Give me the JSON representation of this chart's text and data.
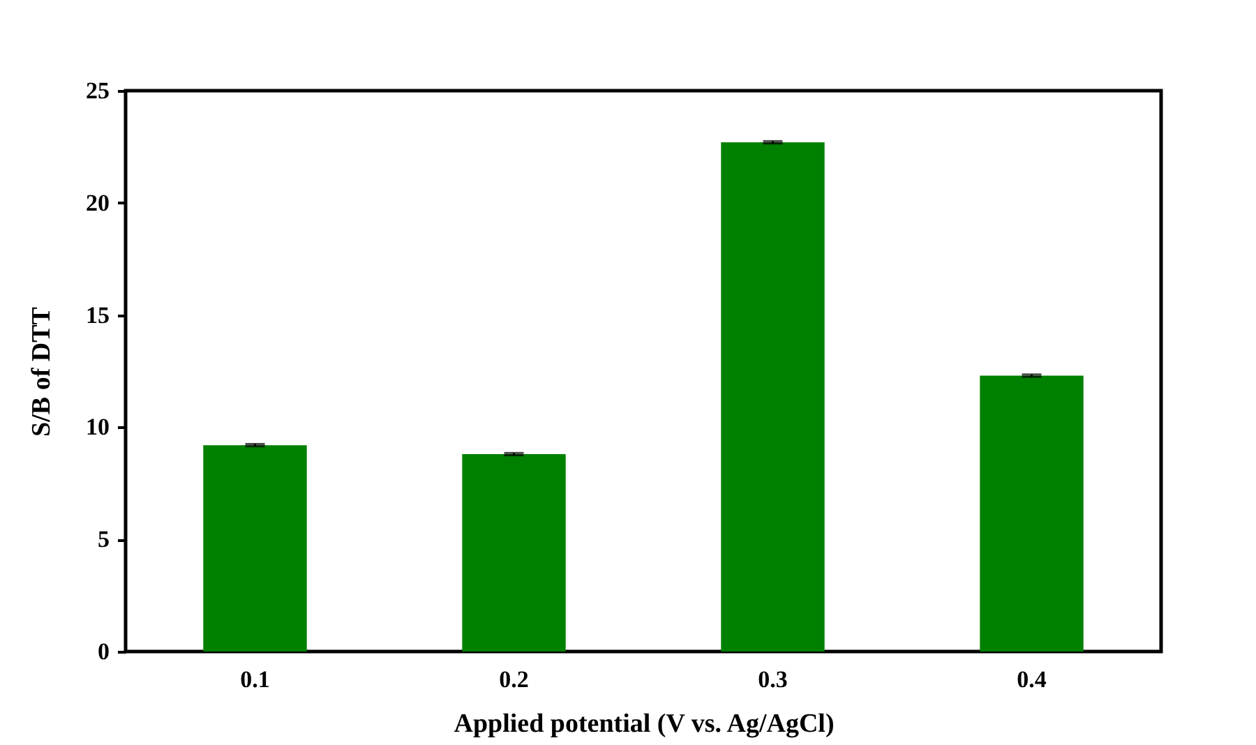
{
  "chart_data": {
    "type": "bar",
    "xlabel": "Applied potential (V vs. Ag/AgCl)",
    "ylabel": "S/B of DTT",
    "categories": [
      "0.1",
      "0.2",
      "0.3",
      "0.4"
    ],
    "values": [
      9.2,
      8.8,
      22.7,
      12.3
    ],
    "errors": [
      0.05,
      0.05,
      0.05,
      0.05
    ],
    "color": "#008000",
    "ylim": [
      0,
      25
    ],
    "yticks": [
      0,
      5,
      10,
      15,
      20,
      25
    ],
    "grid": false
  }
}
